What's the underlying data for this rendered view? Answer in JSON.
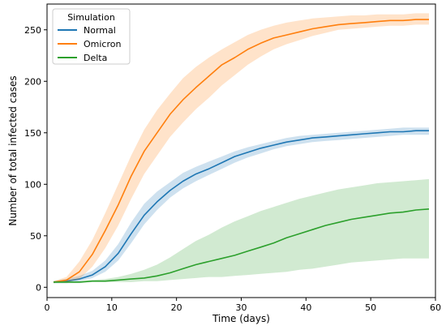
{
  "chart_data": {
    "type": "line",
    "xlabel": "Time (days)",
    "ylabel": "Number of total infected cases",
    "xlim": [
      0,
      60
    ],
    "ylim": [
      -10,
      275
    ],
    "xticks": [
      0,
      10,
      20,
      30,
      40,
      50,
      60
    ],
    "yticks": [
      0,
      50,
      100,
      150,
      200,
      250
    ],
    "grid": false,
    "legend": {
      "title": "Simulation",
      "placement": "top-left"
    },
    "series": [
      {
        "name": "Normal",
        "color": "#1f77b4",
        "x": [
          1,
          3,
          5,
          7,
          9,
          11,
          13,
          15,
          17,
          19,
          21,
          23,
          25,
          27,
          29,
          31,
          33,
          35,
          37,
          39,
          41,
          43,
          45,
          47,
          49,
          51,
          53,
          55,
          57,
          59
        ],
        "y": [
          5,
          6,
          8,
          12,
          20,
          33,
          52,
          70,
          83,
          94,
          103,
          110,
          115,
          121,
          127,
          131,
          135,
          138,
          141,
          143,
          145,
          146,
          147,
          148,
          149,
          150,
          151,
          151,
          152,
          152
        ],
        "lower": [
          4,
          4,
          6,
          9,
          15,
          26,
          43,
          61,
          75,
          87,
          96,
          103,
          109,
          115,
          121,
          126,
          130,
          134,
          137,
          139,
          141,
          142,
          143,
          144,
          145,
          146,
          147,
          148,
          148,
          148
        ],
        "upper": [
          6,
          8,
          11,
          16,
          26,
          42,
          63,
          81,
          93,
          102,
          111,
          117,
          122,
          127,
          132,
          136,
          139,
          142,
          145,
          147,
          148,
          149,
          150,
          151,
          152,
          153,
          154,
          155,
          155,
          155
        ]
      },
      {
        "name": "Omicron",
        "color": "#ff7f0e",
        "x": [
          1,
          3,
          5,
          7,
          9,
          11,
          13,
          15,
          17,
          19,
          21,
          23,
          25,
          27,
          29,
          31,
          33,
          35,
          37,
          39,
          41,
          43,
          45,
          47,
          49,
          51,
          53,
          55,
          57,
          59
        ],
        "y": [
          5,
          7,
          15,
          32,
          55,
          80,
          108,
          132,
          150,
          168,
          182,
          194,
          205,
          216,
          223,
          231,
          237,
          242,
          245,
          248,
          251,
          253,
          255,
          256,
          257,
          258,
          259,
          259,
          260,
          260
        ],
        "lower": [
          4,
          5,
          8,
          20,
          38,
          60,
          86,
          110,
          128,
          146,
          160,
          173,
          184,
          196,
          206,
          216,
          224,
          231,
          236,
          240,
          244,
          247,
          250,
          251,
          252,
          253,
          254,
          254,
          255,
          255
        ],
        "upper": [
          6,
          10,
          25,
          46,
          72,
          100,
          128,
          153,
          172,
          188,
          203,
          214,
          223,
          231,
          238,
          245,
          250,
          254,
          257,
          259,
          261,
          262,
          263,
          264,
          264,
          265,
          265,
          265,
          266,
          266
        ]
      },
      {
        "name": "Delta",
        "color": "#2ca02c",
        "x": [
          1,
          3,
          5,
          7,
          9,
          11,
          13,
          15,
          17,
          19,
          21,
          23,
          25,
          27,
          29,
          31,
          33,
          35,
          37,
          39,
          41,
          43,
          45,
          47,
          49,
          51,
          53,
          55,
          57,
          59
        ],
        "y": [
          5,
          5,
          5,
          6,
          6,
          7,
          8,
          9,
          11,
          14,
          18,
          22,
          25,
          28,
          31,
          35,
          39,
          43,
          48,
          52,
          56,
          60,
          63,
          66,
          68,
          70,
          72,
          73,
          75,
          76
        ],
        "lower": [
          4,
          4,
          4,
          5,
          5,
          5,
          5,
          6,
          6,
          7,
          8,
          9,
          10,
          10,
          11,
          12,
          13,
          14,
          15,
          17,
          18,
          20,
          22,
          24,
          25,
          26,
          27,
          28,
          28,
          28
        ],
        "upper": [
          6,
          6,
          6,
          7,
          8,
          10,
          13,
          17,
          22,
          29,
          37,
          45,
          51,
          58,
          64,
          69,
          74,
          78,
          82,
          86,
          89,
          92,
          95,
          97,
          99,
          101,
          102,
          103,
          104,
          105
        ]
      }
    ]
  }
}
